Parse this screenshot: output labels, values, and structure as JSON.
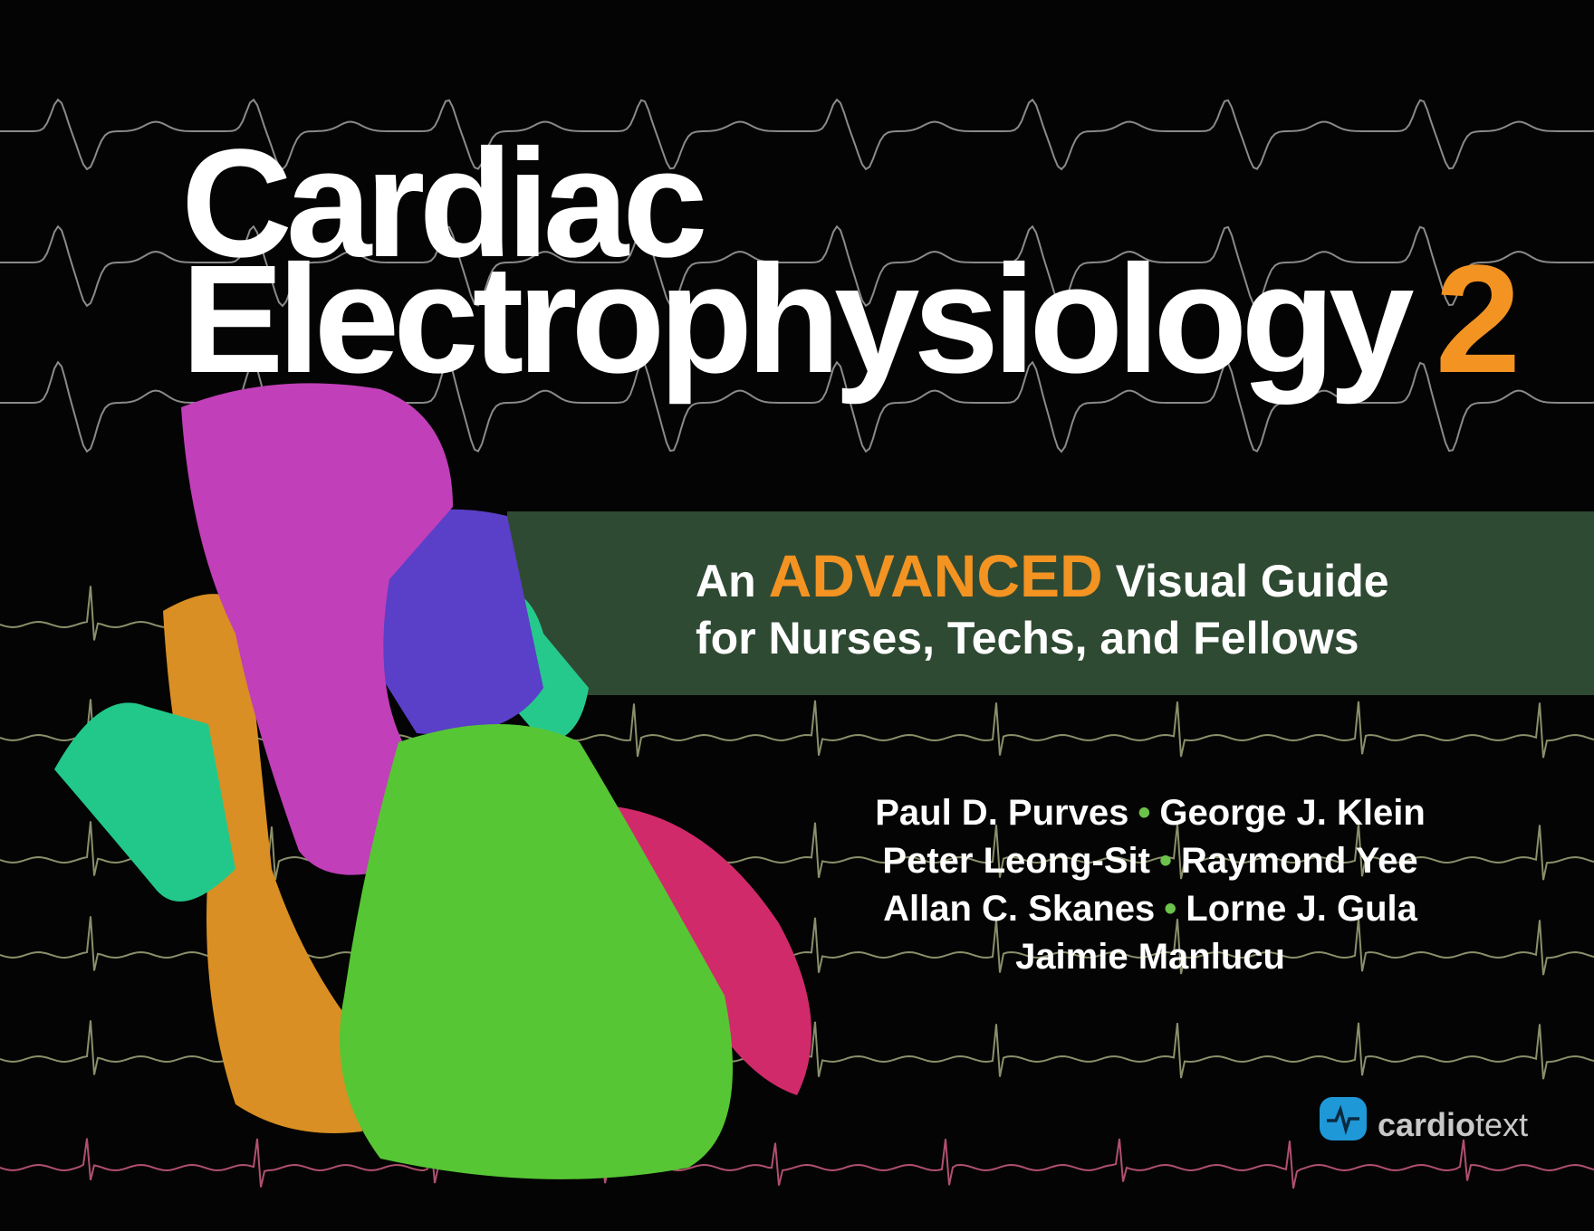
{
  "title": {
    "line1": "Cardiac",
    "line2": "Electrophysiology",
    "edition": "2"
  },
  "subtitle": {
    "prefix": "An",
    "emphasis": "ADVANCED",
    "suffix": "Visual Guide",
    "line2": "for Nurses, Techs, and Fellows"
  },
  "authors": {
    "rows": [
      [
        "Paul D. Purves",
        "George J. Klein"
      ],
      [
        "Peter Leong-Sit",
        "Raymond Yee"
      ],
      [
        "Allan C. Skanes",
        "Lorne J. Gula"
      ],
      [
        "Jaimie Manlucu"
      ]
    ],
    "separator": "•"
  },
  "publisher": {
    "bold": "cardio",
    "light": "text",
    "icon": "ecg-waveform-icon"
  },
  "colors": {
    "background": "#040404",
    "accent_orange": "#f39322",
    "band_green": "#2f4a33",
    "bullet_green": "#6cc24a",
    "logo_blue": "#1e98d7",
    "trace_gray": "#8a8a8a",
    "trace_olive": "#8a8f6a",
    "trace_pink": "#b0506e"
  },
  "artwork": {
    "heart_segments": [
      "magenta",
      "orange",
      "teal",
      "blue",
      "green",
      "crimson"
    ]
  }
}
